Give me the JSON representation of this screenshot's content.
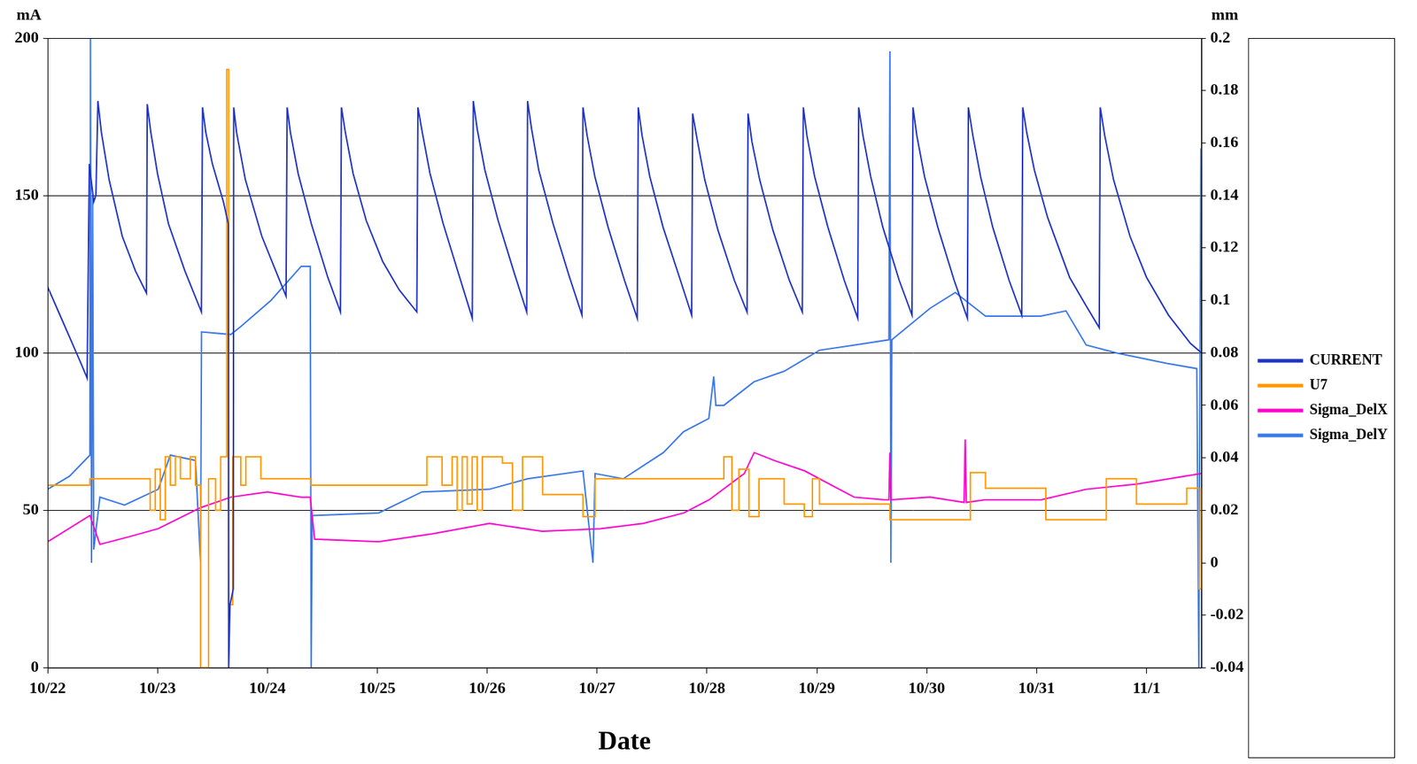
{
  "chart_data": {
    "type": "line",
    "xlabel": "Date",
    "ylabel": "mA",
    "y2label": "mm",
    "xlim": [
      0,
      10.5
    ],
    "xticks": [
      {
        "value": 0,
        "label": "10/22"
      },
      {
        "value": 1,
        "label": "10/23"
      },
      {
        "value": 2,
        "label": "10/24"
      },
      {
        "value": 3,
        "label": "10/25"
      },
      {
        "value": 4,
        "label": "10/26"
      },
      {
        "value": 5,
        "label": "10/27"
      },
      {
        "value": 6,
        "label": "10/28"
      },
      {
        "value": 7,
        "label": "10/29"
      },
      {
        "value": 8,
        "label": "10/30"
      },
      {
        "value": 9,
        "label": "10/31"
      },
      {
        "value": 10,
        "label": "11/1"
      }
    ],
    "ylim": [
      0,
      200
    ],
    "yticks": [
      0,
      50,
      100,
      150,
      200
    ],
    "y2lim": [
      -0.04,
      0.2
    ],
    "y2ticks": [
      -0.04,
      -0.02,
      0,
      0.02,
      0.04,
      0.06,
      0.08,
      0.1,
      0.12,
      0.14,
      0.16,
      0.18,
      0.2
    ],
    "grid": true,
    "legend": "right",
    "marker": "none",
    "series": [
      {
        "name": "CURRENT",
        "color": "#2034c0",
        "axis": "y",
        "x": [
          0,
          0.1,
          0.2,
          0.3,
          0.36,
          0.38,
          0.42,
          0.44,
          0.458,
          0.49,
          0.56,
          0.68,
          0.8,
          0.9,
          0.907,
          0.94,
          1.0,
          1.1,
          1.25,
          1.4,
          1.41,
          1.44,
          1.5,
          1.6,
          1.645,
          1.648,
          1.66,
          1.69,
          1.694,
          1.72,
          1.8,
          1.95,
          2.1,
          2.17,
          2.18,
          2.21,
          2.28,
          2.4,
          2.55,
          2.665,
          2.674,
          2.71,
          2.78,
          2.9,
          3.05,
          3.2,
          3.36,
          3.37,
          3.41,
          3.48,
          3.6,
          3.75,
          3.865,
          3.874,
          3.91,
          3.98,
          4.1,
          4.25,
          4.36,
          4.368,
          4.405,
          4.47,
          4.6,
          4.75,
          4.863,
          4.872,
          4.91,
          4.98,
          5.1,
          5.25,
          5.366,
          5.375,
          5.41,
          5.48,
          5.6,
          5.75,
          5.861,
          5.87,
          5.91,
          5.98,
          6.1,
          6.25,
          6.365,
          6.374,
          6.41,
          6.48,
          6.6,
          6.75,
          6.868,
          6.877,
          6.91,
          6.98,
          7.1,
          7.25,
          7.372,
          7.381,
          7.42,
          7.49,
          7.6,
          7.75,
          7.866,
          7.875,
          7.91,
          7.98,
          8.1,
          8.25,
          8.37,
          8.379,
          8.42,
          8.49,
          8.6,
          8.75,
          8.865,
          8.874,
          8.91,
          8.98,
          9.1,
          9.3,
          9.45,
          9.57,
          9.579,
          9.62,
          9.7,
          9.85,
          10.0,
          10.2,
          10.4,
          10.5
        ],
        "values": [
          121,
          113,
          105,
          97,
          92,
          160,
          148,
          150,
          180,
          170,
          155,
          137,
          126,
          119,
          179,
          170,
          157,
          141,
          126,
          113,
          178,
          170,
          160,
          148,
          141,
          0,
          20,
          25,
          178,
          170,
          155,
          137,
          124,
          118,
          178,
          170,
          157,
          141,
          124,
          113,
          178,
          170,
          157,
          142,
          129,
          120,
          113,
          178,
          170,
          157,
          141,
          124,
          111,
          180,
          171,
          158,
          142,
          125,
          113,
          180,
          171,
          158,
          141,
          124,
          112,
          178,
          169,
          156,
          140,
          123,
          111,
          178,
          169,
          156,
          140,
          124,
          112,
          176,
          168,
          155,
          139,
          123,
          113,
          176,
          167,
          155,
          139,
          123,
          113,
          178,
          169,
          156,
          140,
          123,
          111,
          178,
          169,
          156,
          140,
          123,
          112,
          178,
          169,
          156,
          140,
          123,
          111,
          178,
          169,
          156,
          140,
          123,
          112,
          178,
          170,
          158,
          143,
          124,
          115,
          108,
          178,
          169,
          155,
          137,
          124,
          112,
          103,
          100
        ]
      },
      {
        "name": "U7",
        "color": "#ff9900",
        "axis": "y",
        "line_style": "steps",
        "x": [
          0,
          0.385,
          0.934,
          0.98,
          1.026,
          1.071,
          1.117,
          1.163,
          1.209,
          1.3,
          1.346,
          1.392,
          1.465,
          1.529,
          1.575,
          1.63,
          1.648,
          1.685,
          1.758,
          1.804,
          1.941,
          2.399,
          3.452,
          3.59,
          3.681,
          3.727,
          3.773,
          3.819,
          3.864,
          3.91,
          3.956,
          4.139,
          4.231,
          4.322,
          4.505,
          4.872,
          4.982,
          6.154,
          6.227,
          6.291,
          6.383,
          6.474,
          6.703,
          6.886,
          6.96,
          7.024,
          7.665,
          8.397,
          8.535,
          9.084,
          9.634,
          9.908,
          10.366,
          10.476,
          10.5
        ],
        "values": [
          58,
          60,
          50,
          63,
          47,
          67,
          58,
          67,
          60,
          67,
          58,
          0,
          60,
          50,
          67,
          190,
          20,
          67,
          58,
          67,
          60,
          58,
          67,
          58,
          67,
          50,
          67,
          52,
          67,
          50,
          67,
          65,
          50,
          67,
          55,
          48,
          60,
          67,
          50,
          63,
          48,
          60,
          52,
          48,
          60,
          52,
          47,
          62,
          57,
          47,
          60,
          52,
          57,
          25,
          57
        ]
      },
      {
        "name": "Sigma_DelX",
        "color": "#ff00cc",
        "axis": "y2",
        "x": [
          0,
          0.385,
          0.476,
          0.75,
          1.007,
          1.392,
          1.667,
          2.0,
          2.308,
          2.39,
          2.43,
          3.013,
          3.5,
          4.02,
          4.5,
          5.03,
          5.42,
          5.79,
          6.02,
          6.34,
          6.43,
          6.61,
          6.89,
          7.16,
          7.34,
          7.62,
          7.656,
          7.665,
          7.674,
          8.03,
          8.34,
          8.35,
          8.36,
          8.53,
          9.04,
          9.45,
          9.91,
          10.5
        ],
        "values": [
          0.008,
          0.018,
          0.007,
          0.01,
          0.013,
          0.021,
          0.025,
          0.027,
          0.025,
          0.025,
          0.009,
          0.008,
          0.011,
          0.015,
          0.012,
          0.013,
          0.015,
          0.019,
          0.024,
          0.034,
          0.042,
          0.039,
          0.035,
          0.029,
          0.025,
          0.024,
          0.024,
          0.042,
          0.024,
          0.025,
          0.023,
          0.047,
          0.023,
          0.024,
          0.024,
          0.028,
          0.03,
          0.034
        ]
      },
      {
        "name": "Sigma_DelY",
        "color": "#3b78e7",
        "axis": "y2",
        "x": [
          0,
          0.2,
          0.385,
          0.39,
          0.4,
          0.41,
          0.42,
          0.476,
          0.7,
          1.007,
          1.117,
          1.346,
          1.392,
          1.401,
          1.667,
          1.758,
          2.033,
          2.308,
          2.39,
          2.399,
          2.408,
          3.013,
          3.407,
          4.02,
          4.368,
          4.872,
          4.963,
          4.982,
          5.238,
          5.604,
          5.788,
          6.017,
          6.062,
          6.081,
          6.154,
          6.429,
          6.703,
          7.024,
          7.344,
          7.656,
          7.665,
          7.674,
          7.683,
          8.031,
          8.26,
          8.535,
          9.038,
          9.267,
          9.451,
          9.725,
          10.183,
          10.458,
          10.476,
          10.495,
          10.5
        ],
        "values": [
          0.028,
          0.033,
          0.041,
          0.2,
          0.0,
          0.14,
          0.005,
          0.025,
          0.022,
          0.028,
          0.041,
          0.039,
          0.0,
          0.088,
          0.087,
          0.09,
          0.1,
          0.113,
          0.113,
          -0.04,
          0.018,
          0.019,
          0.027,
          0.028,
          0.032,
          0.035,
          0.0,
          0.034,
          0.032,
          0.042,
          0.05,
          0.055,
          0.071,
          0.06,
          0.06,
          0.069,
          0.073,
          0.081,
          0.083,
          0.085,
          0.195,
          0.0,
          0.085,
          0.097,
          0.103,
          0.094,
          0.094,
          0.096,
          0.083,
          0.08,
          0.076,
          0.074,
          -0.04,
          0.158,
          0.155
        ]
      }
    ]
  }
}
